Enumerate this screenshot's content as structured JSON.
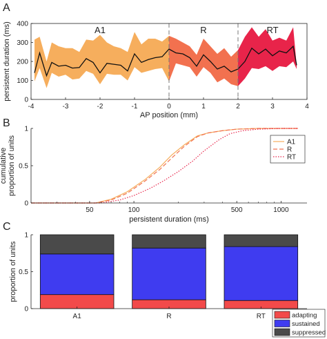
{
  "chart_data": [
    {
      "panel": "A",
      "type": "area",
      "xlabel": "AP position (mm)",
      "ylabel": "persistent duration (ms)",
      "xlim": [
        -4,
        4
      ],
      "ylim": [
        0,
        400
      ],
      "xticks": [
        -4,
        -3,
        -2,
        -1,
        0,
        1,
        2,
        3,
        4
      ],
      "yticks": [
        0,
        100,
        200,
        300,
        400
      ],
      "region_labels": [
        "A1",
        "R",
        "RT"
      ],
      "region_boundaries": [
        0,
        2
      ],
      "colors": {
        "A1": "#f6ae5d",
        "R": "#f2714f",
        "RT": "#e8244a",
        "line": "#111111",
        "divider": "#777777"
      },
      "series": [
        {
          "x": [
            -3.9,
            -3.75,
            -3.55,
            -3.4,
            -3.2,
            -3.0,
            -2.8,
            -2.6,
            -2.4,
            -2.2,
            -2.0,
            -1.8,
            -1.6,
            -1.4,
            -1.2,
            -1.0,
            -0.8,
            -0.6,
            -0.4,
            -0.2,
            0.0,
            0.2,
            0.4,
            0.6,
            0.8,
            1.0,
            1.2,
            1.4,
            1.6,
            1.8,
            2.0,
            2.2,
            2.4,
            2.6,
            2.8,
            3.0,
            3.2,
            3.4,
            3.6,
            3.7
          ],
          "y": [
            140,
            245,
            125,
            195,
            175,
            180,
            165,
            168,
            215,
            195,
            140,
            190,
            185,
            180,
            150,
            240,
            195,
            210,
            220,
            225,
            265,
            245,
            240,
            220,
            175,
            235,
            200,
            160,
            175,
            145,
            160,
            200,
            270,
            240,
            265,
            230,
            255,
            245,
            280,
            180
          ],
          "lower": [
            95,
            165,
            60,
            140,
            120,
            130,
            105,
            110,
            150,
            135,
            80,
            135,
            130,
            130,
            100,
            170,
            140,
            150,
            160,
            165,
            95,
            190,
            180,
            170,
            120,
            170,
            140,
            90,
            110,
            80,
            70,
            110,
            165,
            160,
            175,
            150,
            175,
            170,
            200,
            160
          ],
          "upper": [
            315,
            330,
            200,
            300,
            280,
            270,
            270,
            250,
            315,
            310,
            340,
            300,
            280,
            270,
            250,
            355,
            290,
            320,
            320,
            305,
            335,
            320,
            300,
            280,
            235,
            320,
            280,
            240,
            270,
            225,
            260,
            330,
            380,
            330,
            370,
            310,
            325,
            310,
            380,
            180
          ]
        }
      ]
    },
    {
      "panel": "B",
      "type": "line",
      "xlabel": "persistent duration (ms)",
      "ylabel": "cumulative\nproportion of units",
      "xscale": "log",
      "xlim": [
        20,
        1500
      ],
      "ylim": [
        0,
        1
      ],
      "xticks": [
        50,
        100,
        500,
        1000
      ],
      "yticks": [
        0,
        0.5,
        1
      ],
      "legend_position": "right",
      "series": [
        {
          "name": "A1",
          "color": "#f6ae5d",
          "style": "solid",
          "x": [
            20,
            55,
            70,
            90,
            120,
            150,
            180,
            220,
            270,
            320,
            400,
            500,
            700,
            1000,
            1300
          ],
          "y": [
            0,
            0,
            0.05,
            0.15,
            0.32,
            0.48,
            0.64,
            0.78,
            0.9,
            0.94,
            0.97,
            0.99,
            1.0,
            1.0,
            1.0
          ]
        },
        {
          "name": "R",
          "color": "#f2714f",
          "style": "dashed",
          "x": [
            20,
            55,
            70,
            90,
            120,
            150,
            180,
            220,
            270,
            320,
            400,
            500,
            700,
            1000,
            1300
          ],
          "y": [
            0,
            0,
            0.04,
            0.13,
            0.3,
            0.45,
            0.6,
            0.76,
            0.89,
            0.94,
            0.97,
            0.99,
            1.0,
            1.0,
            1.0
          ]
        },
        {
          "name": "RT",
          "color": "#e8244a",
          "style": "dotted",
          "x": [
            20,
            60,
            80,
            100,
            130,
            160,
            200,
            250,
            300,
            380,
            450,
            550,
            700,
            1000,
            1300
          ],
          "y": [
            0,
            0,
            0.04,
            0.1,
            0.2,
            0.3,
            0.42,
            0.56,
            0.7,
            0.85,
            0.93,
            0.97,
            0.99,
            1.0,
            1.0
          ]
        }
      ]
    },
    {
      "panel": "C",
      "type": "bar",
      "stacked": true,
      "ylabel": "proportion of units",
      "ylim": [
        0,
        1
      ],
      "yticks": [
        0,
        0.5,
        1
      ],
      "categories": [
        "A1",
        "R",
        "RT"
      ],
      "legend_position": "bottom-right",
      "series": [
        {
          "name": "adapting",
          "color": "#f24a4a",
          "values": [
            0.19,
            0.12,
            0.11
          ]
        },
        {
          "name": "sustained",
          "color": "#3f3cf0",
          "values": [
            0.55,
            0.7,
            0.73
          ]
        },
        {
          "name": "suppressed",
          "color": "#4a4a4a",
          "values": [
            0.26,
            0.18,
            0.16
          ]
        }
      ]
    }
  ],
  "panel_letters": [
    "A",
    "B",
    "C"
  ]
}
